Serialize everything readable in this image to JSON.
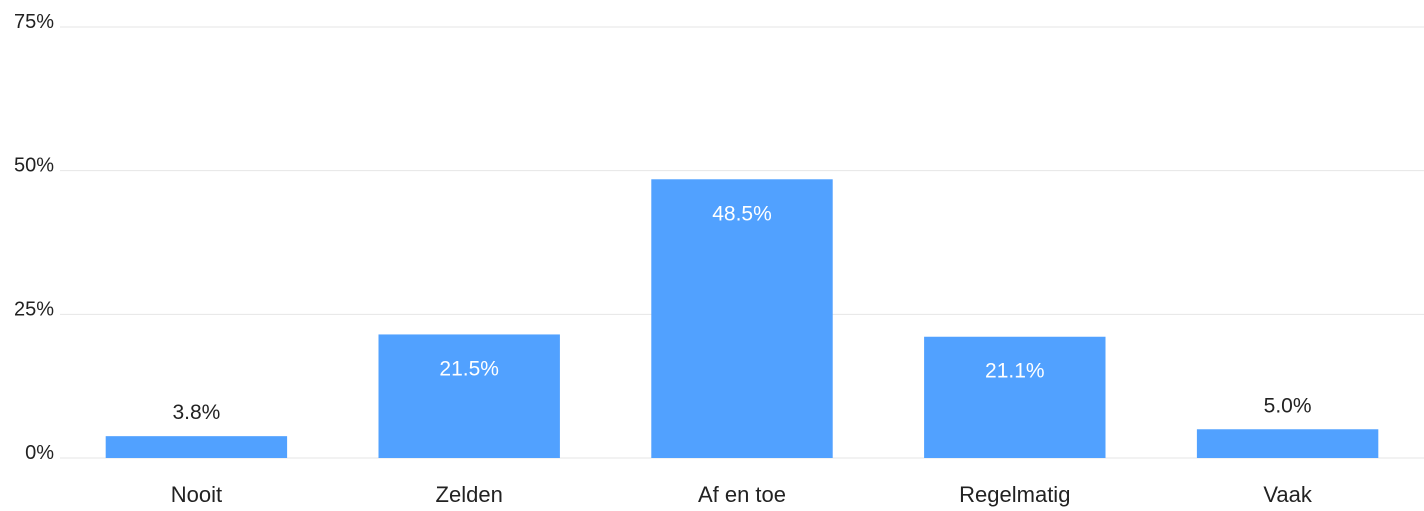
{
  "chart_data": {
    "type": "bar",
    "title": "",
    "xlabel": "",
    "ylabel": "",
    "categories": [
      "Nooit",
      "Zelden",
      "Af en toe",
      "Regelmatig",
      "Vaak"
    ],
    "values": [
      3.8,
      21.5,
      48.5,
      21.1,
      5.0
    ],
    "data_labels": [
      "3.8%",
      "21.5%",
      "48.5%",
      "21.1%",
      "5.0%"
    ],
    "yticks": [
      0,
      25,
      50,
      75
    ],
    "ytick_labels": [
      "0%",
      "25%",
      "50%",
      "75%"
    ],
    "ylim": [
      0,
      75
    ],
    "grid": true,
    "legend": "none",
    "colors": {
      "bar": "#51a1ff",
      "label_inside": "#ffffff",
      "label_outside": "#222222",
      "grid": "#e6e6e6"
    }
  }
}
